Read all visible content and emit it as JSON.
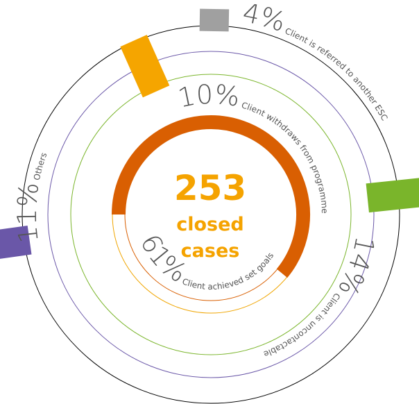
{
  "chart_data": {
    "type": "radial_bar",
    "total": "253",
    "total_label": [
      "closed",
      "cases"
    ],
    "categories": [
      "Client achieved set goals",
      "Client withdraws from programme",
      "Client is referred to another ESC",
      "Client is uncontactable",
      "Others"
    ],
    "values": [
      61,
      10,
      4,
      14,
      11
    ],
    "value_labels": [
      "61%",
      "10%",
      "4%",
      "14%",
      "11%"
    ],
    "colors": [
      "#d95f02",
      "#f5a500",
      "#a0a0a0",
      "#7ab52b",
      "#6a57a8"
    ]
  }
}
